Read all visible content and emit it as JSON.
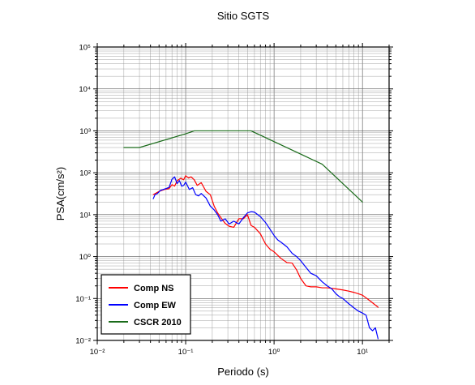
{
  "chart_data": {
    "type": "line",
    "title": "Sitio SGTS",
    "xlabel": "Periodo (s)",
    "ylabel": "PSA(cm/s²)",
    "xscale": "log",
    "yscale": "log",
    "xlim": [
      0.01,
      20
    ],
    "ylim": [
      0.01,
      100000
    ],
    "x_tick_labels": [
      "10⁻²",
      "10⁻¹",
      "10⁰",
      "10¹"
    ],
    "y_tick_labels": [
      "10⁻²",
      "10⁻¹",
      "10⁰",
      "10¹",
      "10²",
      "10³",
      "10⁴",
      "10⁵"
    ],
    "grid": true,
    "legend_position": "bottom-left",
    "series": [
      {
        "name": "Comp NS",
        "color": "#ff0000",
        "x": [
          0.043,
          0.05,
          0.058,
          0.065,
          0.07,
          0.075,
          0.08,
          0.088,
          0.095,
          0.1,
          0.108,
          0.115,
          0.125,
          0.135,
          0.15,
          0.17,
          0.19,
          0.21,
          0.23,
          0.25,
          0.28,
          0.31,
          0.35,
          0.4,
          0.45,
          0.5,
          0.55,
          0.6,
          0.7,
          0.8,
          0.9,
          1.0,
          1.2,
          1.4,
          1.6,
          1.8,
          2.0,
          2.3,
          2.6,
          3.0,
          3.5,
          4.0,
          5.0,
          6.0,
          7.0,
          8.0,
          9.0,
          10.0,
          12.0,
          15.0
        ],
        "y": [
          30,
          36,
          40,
          42,
          52,
          48,
          64,
          74,
          68,
          85,
          75,
          80,
          68,
          50,
          58,
          36,
          30,
          16,
          11,
          8.5,
          6.2,
          5.3,
          5.0,
          8.0,
          8.0,
          10,
          5.5,
          5.0,
          3.5,
          2.0,
          1.5,
          1.3,
          0.9,
          0.72,
          0.7,
          0.48,
          0.3,
          0.2,
          0.19,
          0.19,
          0.18,
          0.18,
          0.17,
          0.16,
          0.15,
          0.14,
          0.13,
          0.12,
          0.09,
          0.062
        ]
      },
      {
        "name": "Comp EW",
        "color": "#0000ff",
        "x": [
          0.043,
          0.045,
          0.048,
          0.052,
          0.056,
          0.06,
          0.065,
          0.07,
          0.075,
          0.08,
          0.085,
          0.09,
          0.095,
          0.1,
          0.11,
          0.12,
          0.13,
          0.14,
          0.15,
          0.17,
          0.19,
          0.21,
          0.23,
          0.25,
          0.28,
          0.31,
          0.35,
          0.4,
          0.45,
          0.5,
          0.55,
          0.6,
          0.7,
          0.8,
          0.9,
          1.0,
          1.1,
          1.2,
          1.4,
          1.6,
          1.8,
          2.0,
          2.3,
          2.6,
          3.0,
          3.5,
          4.0,
          4.5,
          5.0,
          5.5,
          6.0,
          7.0,
          8.0,
          9.0,
          10.0,
          11.0,
          12.0,
          13.0,
          14.0,
          15.0
        ],
        "y": [
          24,
          30,
          32,
          38,
          40,
          42,
          45,
          70,
          80,
          55,
          65,
          48,
          50,
          60,
          40,
          44,
          30,
          28,
          32,
          25,
          16,
          13,
          10,
          7,
          8,
          6,
          7,
          6,
          8.5,
          11,
          11.8,
          11.5,
          9,
          6.5,
          4.5,
          3.2,
          2.5,
          2.2,
          1.7,
          1.2,
          1.0,
          0.8,
          0.55,
          0.4,
          0.35,
          0.25,
          0.2,
          0.17,
          0.13,
          0.11,
          0.1,
          0.075,
          0.06,
          0.05,
          0.045,
          0.04,
          0.02,
          0.017,
          0.02,
          0.011
        ]
      },
      {
        "name": "CSCR 2010",
        "color": "#1a6b1a",
        "x": [
          0.02,
          0.03,
          0.1,
          0.125,
          0.55,
          3.5,
          10.0
        ],
        "y": [
          400,
          400,
          850,
          1000,
          1000,
          160,
          20
        ]
      }
    ]
  }
}
